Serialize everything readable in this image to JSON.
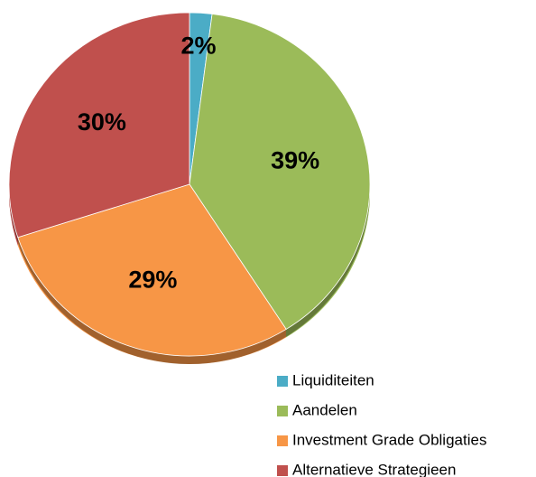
{
  "chart_data": {
    "type": "pie",
    "categories": [
      "Liquiditeiten",
      "Aandelen",
      "Investment Grade Obligaties",
      "Alternatieve Strategieen"
    ],
    "values": [
      2,
      39,
      29,
      30
    ],
    "value_labels": [
      "2%",
      "39%",
      "29%",
      "30%"
    ],
    "colors": [
      "#4bacc6",
      "#9bbb59",
      "#f79646",
      "#c0504d"
    ],
    "legend": "bottom-right"
  }
}
